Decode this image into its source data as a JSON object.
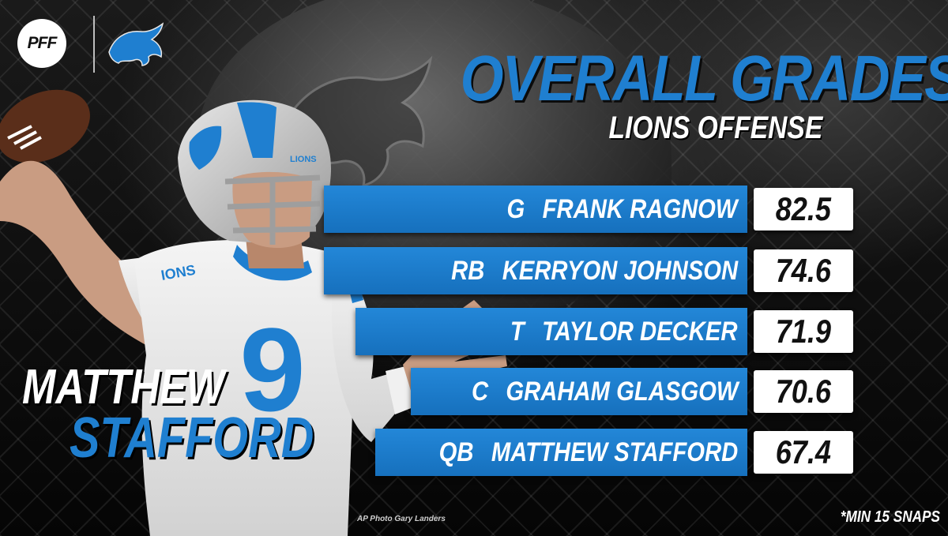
{
  "header": {
    "brand": "PFF",
    "team_logo": "lions-logo-icon",
    "title": "OVERALL GRADES",
    "subtitle": "LIONS OFFENSE"
  },
  "grades": [
    {
      "position": "G",
      "name": "FRANK RAGNOW",
      "grade": "82.5"
    },
    {
      "position": "RB",
      "name": "KERRYON JOHNSON",
      "grade": "74.6"
    },
    {
      "position": "T",
      "name": "TAYLOR DECKER",
      "grade": "71.9"
    },
    {
      "position": "C",
      "name": "GRAHAM GLASGOW",
      "grade": "70.6"
    },
    {
      "position": "QB",
      "name": "MATTHEW STAFFORD",
      "grade": "67.4"
    }
  ],
  "featured_player": {
    "first_name": "MATTHEW",
    "last_name": "STAFFORD",
    "helmet_text": "LIONS",
    "jersey_number": "9",
    "sleeve_text": "IONS"
  },
  "credit": "AP Photo Gary Landers",
  "footnote": "*MIN 15 SNAPS",
  "colors": {
    "honolulu_blue": "#1f7fd0",
    "bar_blue": "#1b78c9",
    "white": "#ffffff",
    "background": "#0b0b0b"
  }
}
